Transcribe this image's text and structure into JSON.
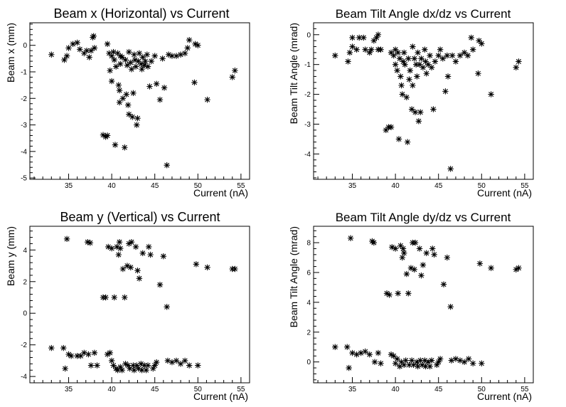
{
  "chart_data": [
    {
      "type": "scatter",
      "title": "Beam x (Horizontal) vs Current",
      "xlabel": "Current (nA)",
      "ylabel": "Beam x (mm)",
      "xlim": [
        30.5,
        56
      ],
      "ylim": [
        -5.05,
        0.85
      ],
      "xticks": [
        35,
        40,
        45,
        50,
        55
      ],
      "yticks": [
        0,
        -1,
        -2,
        -3,
        -4,
        -5
      ],
      "marker": "asterisk",
      "color": "#000000",
      "grid": false,
      "points": [
        [
          33.0,
          -0.35
        ],
        [
          34.5,
          -0.55
        ],
        [
          34.8,
          -0.4
        ],
        [
          35.0,
          -0.1
        ],
        [
          35.5,
          0.05
        ],
        [
          36.0,
          0.1
        ],
        [
          36.3,
          -0.15
        ],
        [
          36.8,
          -0.3
        ],
        [
          37.1,
          -0.2
        ],
        [
          37.4,
          -0.45
        ],
        [
          37.6,
          -0.2
        ],
        [
          37.8,
          0.3
        ],
        [
          37.9,
          0.35
        ],
        [
          38.0,
          -0.1
        ],
        [
          39.0,
          -3.38
        ],
        [
          39.3,
          -3.45
        ],
        [
          39.5,
          -3.4
        ],
        [
          39.5,
          0.05
        ],
        [
          39.7,
          -0.3
        ],
        [
          39.8,
          -0.95
        ],
        [
          40.0,
          -0.4
        ],
        [
          40.0,
          -1.35
        ],
        [
          40.2,
          -0.25
        ],
        [
          40.3,
          -0.55
        ],
        [
          40.4,
          -3.75
        ],
        [
          40.5,
          -0.8
        ],
        [
          40.7,
          -0.3
        ],
        [
          40.8,
          -1.5
        ],
        [
          40.9,
          -1.7
        ],
        [
          40.9,
          -2.15
        ],
        [
          41.0,
          -0.4
        ],
        [
          41.0,
          -0.7
        ],
        [
          41.2,
          -0.45
        ],
        [
          41.3,
          -2.0
        ],
        [
          41.5,
          -3.85
        ],
        [
          41.6,
          -0.55
        ],
        [
          41.7,
          -1.85
        ],
        [
          41.8,
          -0.75
        ],
        [
          41.9,
          -2.25
        ],
        [
          42.0,
          -0.25
        ],
        [
          42.0,
          -2.6
        ],
        [
          42.2,
          -0.65
        ],
        [
          42.3,
          -0.9
        ],
        [
          42.4,
          -2.7
        ],
        [
          42.5,
          -1.8
        ],
        [
          42.6,
          -0.35
        ],
        [
          42.7,
          -0.55
        ],
        [
          42.8,
          -0.8
        ],
        [
          42.9,
          -3.0
        ],
        [
          43.0,
          -2.75
        ],
        [
          43.1,
          -0.6
        ],
        [
          43.2,
          -0.3
        ],
        [
          43.4,
          -0.7
        ],
        [
          43.5,
          -0.9
        ],
        [
          43.6,
          -0.45
        ],
        [
          43.8,
          -0.75
        ],
        [
          43.9,
          -0.6
        ],
        [
          44.1,
          -0.35
        ],
        [
          44.2,
          -0.8
        ],
        [
          44.4,
          -1.55
        ],
        [
          44.6,
          -0.6
        ],
        [
          45.0,
          -0.4
        ],
        [
          45.2,
          -1.45
        ],
        [
          45.6,
          -2.05
        ],
        [
          45.9,
          -0.5
        ],
        [
          46.1,
          -1.6
        ],
        [
          46.4,
          -4.52
        ],
        [
          46.6,
          -0.35
        ],
        [
          47.0,
          -0.4
        ],
        [
          47.5,
          -0.4
        ],
        [
          48.0,
          -0.35
        ],
        [
          48.5,
          -0.3
        ],
        [
          48.8,
          -0.1
        ],
        [
          49.0,
          0.2
        ],
        [
          49.6,
          -1.4
        ],
        [
          49.7,
          0.05
        ],
        [
          50.0,
          0.0
        ],
        [
          51.1,
          -2.05
        ],
        [
          54.0,
          -1.2
        ],
        [
          54.3,
          -0.95
        ]
      ]
    },
    {
      "type": "scatter",
      "title": "Beam Tilt Angle dx/dz vs Current",
      "xlabel": "Current (nA)",
      "ylabel": "Beam Tilt Angle (mrad)",
      "xlim": [
        30.5,
        56
      ],
      "ylim": [
        -4.85,
        0.4
      ],
      "xticks": [
        35,
        40,
        45,
        50,
        55
      ],
      "yticks": [
        0,
        -1,
        -2,
        -3,
        -4
      ],
      "marker": "asterisk",
      "color": "#000000",
      "grid": false,
      "points": [
        [
          33.0,
          -0.7
        ],
        [
          34.5,
          -0.9
        ],
        [
          34.7,
          -0.6
        ],
        [
          35.0,
          -0.4
        ],
        [
          35.0,
          -0.1
        ],
        [
          35.5,
          -0.5
        ],
        [
          35.8,
          -0.1
        ],
        [
          36.3,
          -0.1
        ],
        [
          36.5,
          -0.5
        ],
        [
          37.0,
          -0.6
        ],
        [
          37.2,
          -0.5
        ],
        [
          37.5,
          -0.2
        ],
        [
          37.8,
          -0.1
        ],
        [
          38.0,
          0.0
        ],
        [
          38.0,
          -0.5
        ],
        [
          38.3,
          -0.5
        ],
        [
          38.9,
          -3.2
        ],
        [
          39.2,
          -3.1
        ],
        [
          39.5,
          -3.1
        ],
        [
          39.5,
          -0.6
        ],
        [
          39.8,
          -0.7
        ],
        [
          40.0,
          -1.0
        ],
        [
          40.0,
          -0.5
        ],
        [
          40.2,
          -1.2
        ],
        [
          40.3,
          -0.6
        ],
        [
          40.4,
          -3.5
        ],
        [
          40.5,
          -0.8
        ],
        [
          40.6,
          -1.4
        ],
        [
          40.7,
          -1.7
        ],
        [
          40.8,
          -2.0
        ],
        [
          40.9,
          -0.9
        ],
        [
          41.0,
          -0.6
        ],
        [
          41.1,
          -1.0
        ],
        [
          41.3,
          -2.1
        ],
        [
          41.4,
          -3.6
        ],
        [
          41.5,
          -0.8
        ],
        [
          41.6,
          -1.5
        ],
        [
          41.7,
          -1.2
        ],
        [
          41.9,
          -2.5
        ],
        [
          42.0,
          -0.4
        ],
        [
          42.0,
          -1.7
        ],
        [
          42.2,
          -0.8
        ],
        [
          42.3,
          -2.6
        ],
        [
          42.4,
          -1.0
        ],
        [
          42.5,
          -1.4
        ],
        [
          42.6,
          -0.6
        ],
        [
          42.7,
          -2.9
        ],
        [
          42.8,
          -1.0
        ],
        [
          42.9,
          -2.6
        ],
        [
          43.0,
          -0.8
        ],
        [
          43.2,
          -1.1
        ],
        [
          43.4,
          -0.5
        ],
        [
          43.5,
          -0.9
        ],
        [
          43.6,
          -1.3
        ],
        [
          43.8,
          -1.0
        ],
        [
          44.0,
          -0.7
        ],
        [
          44.2,
          -1.1
        ],
        [
          44.4,
          -2.5
        ],
        [
          44.6,
          -0.9
        ],
        [
          45.0,
          -0.7
        ],
        [
          45.2,
          -0.5
        ],
        [
          45.5,
          -0.8
        ],
        [
          45.8,
          -1.9
        ],
        [
          46.0,
          -0.7
        ],
        [
          46.1,
          -1.4
        ],
        [
          46.4,
          -4.5
        ],
        [
          46.6,
          -0.7
        ],
        [
          47.0,
          -0.9
        ],
        [
          47.5,
          -0.7
        ],
        [
          48.0,
          -0.6
        ],
        [
          48.4,
          -0.7
        ],
        [
          48.8,
          -0.1
        ],
        [
          49.0,
          -0.5
        ],
        [
          49.6,
          -1.3
        ],
        [
          49.7,
          -0.2
        ],
        [
          50.0,
          -0.3
        ],
        [
          51.1,
          -2.0
        ],
        [
          54.0,
          -1.1
        ],
        [
          54.3,
          -0.9
        ]
      ]
    },
    {
      "type": "scatter",
      "title": "Beam y (Vertical) vs Current",
      "xlabel": "Current (nA)",
      "ylabel": "Beam y (mm)",
      "xlim": [
        30.5,
        56
      ],
      "ylim": [
        -4.4,
        5.5
      ],
      "xticks": [
        35,
        40,
        45,
        50,
        55
      ],
      "yticks": [
        4,
        2,
        0,
        -2,
        -4
      ],
      "marker": "asterisk",
      "color": "#000000",
      "grid": false,
      "points": [
        [
          33.0,
          -2.2
        ],
        [
          34.4,
          -2.2
        ],
        [
          34.6,
          -3.5
        ],
        [
          34.8,
          4.7
        ],
        [
          35.0,
          -2.6
        ],
        [
          35.3,
          -2.7
        ],
        [
          36.0,
          -2.7
        ],
        [
          36.4,
          -2.7
        ],
        [
          36.8,
          -2.5
        ],
        [
          37.2,
          4.5
        ],
        [
          37.3,
          -2.6
        ],
        [
          37.5,
          4.45
        ],
        [
          37.6,
          -3.3
        ],
        [
          38.0,
          -2.5
        ],
        [
          38.3,
          -3.3
        ],
        [
          39.0,
          1.0
        ],
        [
          39.3,
          1.0
        ],
        [
          39.5,
          -2.6
        ],
        [
          39.6,
          4.2
        ],
        [
          39.8,
          -2.5
        ],
        [
          40.0,
          4.1
        ],
        [
          40.0,
          -3.0
        ],
        [
          40.2,
          -3.3
        ],
        [
          40.3,
          1.0
        ],
        [
          40.5,
          -3.5
        ],
        [
          40.6,
          4.2
        ],
        [
          40.7,
          -3.6
        ],
        [
          40.8,
          3.7
        ],
        [
          40.9,
          4.5
        ],
        [
          41.0,
          -3.4
        ],
        [
          41.0,
          4.1
        ],
        [
          41.2,
          -3.6
        ],
        [
          41.3,
          2.8
        ],
        [
          41.5,
          1.0
        ],
        [
          41.6,
          -3.2
        ],
        [
          41.8,
          3.0
        ],
        [
          41.9,
          -3.3
        ],
        [
          42.0,
          4.4
        ],
        [
          42.1,
          -3.5
        ],
        [
          42.2,
          2.9
        ],
        [
          42.3,
          4.5
        ],
        [
          42.5,
          -3.3
        ],
        [
          42.6,
          -3.6
        ],
        [
          42.8,
          4.2
        ],
        [
          42.9,
          -3.3
        ],
        [
          43.0,
          2.7
        ],
        [
          43.1,
          -3.5
        ],
        [
          43.2,
          2.2
        ],
        [
          43.4,
          -3.2
        ],
        [
          43.5,
          -3.6
        ],
        [
          43.6,
          3.8
        ],
        [
          43.8,
          -3.3
        ],
        [
          44.0,
          -3.6
        ],
        [
          44.2,
          -3.3
        ],
        [
          44.3,
          4.2
        ],
        [
          44.5,
          3.7
        ],
        [
          44.8,
          -3.5
        ],
        [
          45.0,
          -3.3
        ],
        [
          45.2,
          -3.1
        ],
        [
          45.6,
          1.8
        ],
        [
          46.0,
          3.6
        ],
        [
          46.4,
          0.4
        ],
        [
          46.5,
          -3.0
        ],
        [
          47.0,
          -3.1
        ],
        [
          47.5,
          -3.0
        ],
        [
          48.0,
          -3.2
        ],
        [
          48.5,
          -3.0
        ],
        [
          49.0,
          -3.3
        ],
        [
          49.8,
          3.1
        ],
        [
          50.0,
          -3.3
        ],
        [
          51.1,
          2.9
        ],
        [
          54.0,
          2.8
        ],
        [
          54.3,
          2.8
        ]
      ]
    },
    {
      "type": "scatter",
      "title": "Beam Tilt Angle dy/dz vs Current",
      "xlabel": "Current (nA)",
      "ylabel": "Beam Tilt Angle (mrad)",
      "xlim": [
        30.5,
        56
      ],
      "ylim": [
        -1.4,
        9.1
      ],
      "xticks": [
        35,
        40,
        45,
        50,
        55
      ],
      "yticks": [
        8,
        6,
        4,
        2,
        0
      ],
      "marker": "asterisk",
      "color": "#000000",
      "grid": false,
      "points": [
        [
          33.0,
          1.0
        ],
        [
          34.4,
          1.0
        ],
        [
          34.6,
          -0.4
        ],
        [
          34.8,
          8.3
        ],
        [
          35.0,
          0.6
        ],
        [
          35.5,
          0.5
        ],
        [
          36.0,
          0.6
        ],
        [
          36.5,
          0.7
        ],
        [
          37.0,
          0.5
        ],
        [
          37.3,
          8.1
        ],
        [
          37.5,
          8.0
        ],
        [
          37.6,
          0.0
        ],
        [
          38.0,
          0.6
        ],
        [
          38.3,
          -0.1
        ],
        [
          39.0,
          4.6
        ],
        [
          39.3,
          4.5
        ],
        [
          39.5,
          0.5
        ],
        [
          39.6,
          7.7
        ],
        [
          39.8,
          0.4
        ],
        [
          40.0,
          7.6
        ],
        [
          40.0,
          -0.1
        ],
        [
          40.2,
          0.2
        ],
        [
          40.3,
          4.6
        ],
        [
          40.5,
          -0.3
        ],
        [
          40.6,
          7.8
        ],
        [
          40.7,
          0.0
        ],
        [
          40.8,
          7.0
        ],
        [
          40.9,
          7.6
        ],
        [
          41.0,
          -0.2
        ],
        [
          41.0,
          7.3
        ],
        [
          41.2,
          0.1
        ],
        [
          41.3,
          5.9
        ],
        [
          41.5,
          4.6
        ],
        [
          41.6,
          -0.2
        ],
        [
          41.8,
          6.3
        ],
        [
          41.9,
          0.1
        ],
        [
          42.0,
          8.0
        ],
        [
          42.1,
          -0.2
        ],
        [
          42.2,
          6.2
        ],
        [
          42.3,
          8.0
        ],
        [
          42.5,
          0.0
        ],
        [
          42.6,
          -0.3
        ],
        [
          42.8,
          7.6
        ],
        [
          42.9,
          0.1
        ],
        [
          43.0,
          5.8
        ],
        [
          43.1,
          -0.2
        ],
        [
          43.2,
          6.5
        ],
        [
          43.4,
          0.1
        ],
        [
          43.5,
          -0.3
        ],
        [
          43.6,
          7.3
        ],
        [
          43.8,
          0.0
        ],
        [
          44.0,
          -0.3
        ],
        [
          44.2,
          0.1
        ],
        [
          44.3,
          7.6
        ],
        [
          44.5,
          7.2
        ],
        [
          44.8,
          -0.2
        ],
        [
          45.0,
          0.0
        ],
        [
          45.2,
          0.2
        ],
        [
          45.6,
          5.2
        ],
        [
          46.0,
          7.0
        ],
        [
          46.4,
          3.7
        ],
        [
          46.5,
          0.1
        ],
        [
          47.0,
          0.2
        ],
        [
          47.5,
          0.1
        ],
        [
          48.0,
          0.0
        ],
        [
          48.5,
          0.2
        ],
        [
          49.0,
          -0.1
        ],
        [
          49.8,
          6.6
        ],
        [
          50.0,
          -0.1
        ],
        [
          51.1,
          6.3
        ],
        [
          54.0,
          6.2
        ],
        [
          54.3,
          6.3
        ]
      ]
    }
  ]
}
